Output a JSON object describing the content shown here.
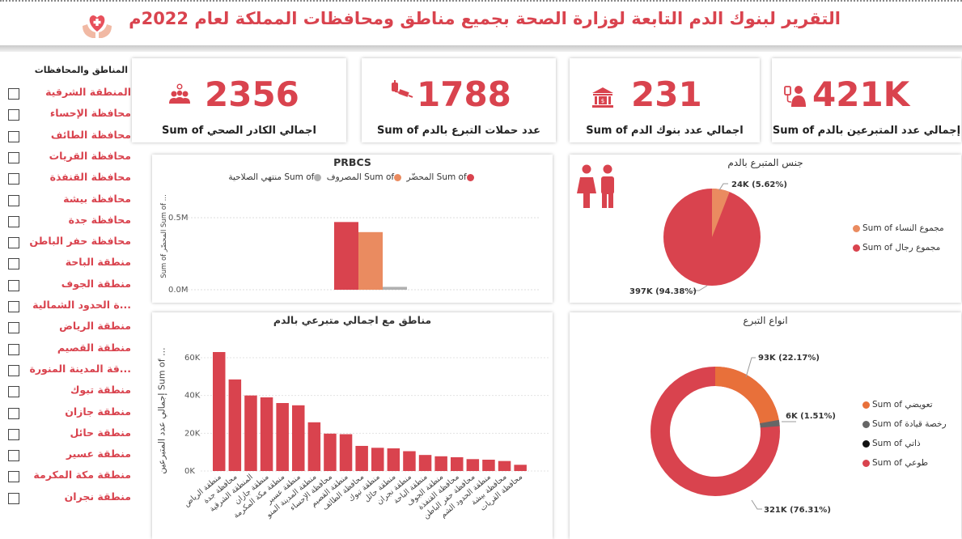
{
  "header": {
    "title": "التقرير  لبنوك الدم التابعة لوزارة الصحة بجميع مناطق ومحافظات المملكة لعام 2022م",
    "logo_icon": "heart-hands-icon"
  },
  "kpis": [
    {
      "value": "2356",
      "label": "اجمالي الكادر الصحي Sum of",
      "icon": "people-icon"
    },
    {
      "value": "1788",
      "label": "عدد حملات التبرع بالدم Sum of",
      "icon": "blood-syringe-icon"
    },
    {
      "value": "231",
      "label": "اجمالي عدد بنوك الدم Sum of",
      "icon": "bank-icon"
    },
    {
      "value": "421K",
      "label": "إجمالي عدد المتبرعين بالدم Sum of",
      "icon": "donor-icon"
    }
  ],
  "slicer": {
    "title": "المناطق والمحافظات",
    "items": [
      "المنطقة الشرقية",
      "محافظة الإحساء",
      "محافظة الطائف",
      "محافظة القريات",
      "محافظة القنفذة",
      "محافظة بيشة",
      "محافظة جدة",
      "محافظة حفر الباطن",
      "منطقة الباحة",
      "منطقة الجوف",
      "...ة الحدود الشمالية",
      "منطقة الرياض",
      "منطقة القصيم",
      "...قة المدينة المنورة",
      "منطقة تبوك",
      "منطقة جازان",
      "منطقة حائل",
      "منطقة عسير",
      "منطقة مكة المكرمة",
      "منطقة نجران"
    ]
  },
  "prbcs": {
    "title": "PRBCS",
    "legend": [
      "Sum of المحضّر",
      "Sum of المصروف",
      "Sum of منتهي الصلاحية"
    ],
    "colors": [
      "#d9434e",
      "#ea8b60",
      "#b0b0b0"
    ],
    "ylabel": "Sum of المحضّر Sum of ...",
    "ticks": [
      "0.5M",
      "0.0M"
    ]
  },
  "regions": {
    "title": "مناطق مع اجمالي متبرعي بالدم",
    "ylabel": "إجمالي عدد المتبرعين Sum of ...",
    "ticks": [
      "60K",
      "40K",
      "20K",
      "0K"
    ],
    "categories": [
      "منطقة الرياض",
      "محافظة جدة",
      "المنطقة الشرقية",
      "منطقة جازان",
      "منطقة مكة المكرمة",
      "منطقة عسير",
      "منطقة المدينة المنو",
      "محافظة الإحساء",
      "منطقة القصيم",
      "محافظة الطائف",
      "منطقة تبوك",
      "منطقة حائل",
      "منطقة نجران",
      "منطقة الباحة",
      "منطقة الجوف",
      "محافظة القنفذة",
      "محافظة حفر الباطن",
      "منطقة الحدود الشم",
      "محافظة بيشة",
      "محافظة القريات"
    ]
  },
  "gender": {
    "title": "جنس المتبرع بالدم",
    "legend": [
      "Sum of مجموع النساء",
      "Sum of مجموع رجال"
    ],
    "colors": [
      "#ea8b60",
      "#d9434e"
    ],
    "labels": [
      "24K (5.62%)",
      "397K (94.38%)"
    ]
  },
  "donation_types": {
    "title": "انواع التبرع",
    "legend": [
      "Sum of تعويضي",
      "Sum of رخصة قيادة",
      "Sum of ذاتي",
      "Sum of طوعي"
    ],
    "colors": [
      "#e8703a",
      "#666666",
      "#111111",
      "#d9434e"
    ],
    "labels": [
      "93K (22.17%)",
      "6K (1.51%)",
      "321K (76.31%)"
    ]
  },
  "chart_data": [
    {
      "type": "bar",
      "title": "PRBCS",
      "series": [
        {
          "name": "Sum of المحضّر",
          "values": [
            0.47
          ]
        },
        {
          "name": "Sum of المصروف",
          "values": [
            0.4
          ]
        },
        {
          "name": "Sum of منتهي الصلاحية",
          "values": [
            0.02
          ]
        }
      ],
      "ylim": [
        0,
        0.6
      ],
      "unit": "M"
    },
    {
      "type": "bar",
      "title": "مناطق مع اجمالي متبرعي بالدم",
      "categories": [
        "منطقة الرياض",
        "محافظة جدة",
        "المنطقة الشرقية",
        "منطقة جازان",
        "منطقة مكة المكرمة",
        "منطقة عسير",
        "منطقة المدينة المنو",
        "محافظة الإحساء",
        "منطقة القصيم",
        "محافظة الطائف",
        "منطقة تبوك",
        "منطقة حائل",
        "منطقة نجران",
        "منطقة الباحة",
        "منطقة الجوف",
        "محافظة القنفذة",
        "محافظة حفر الباطن",
        "منطقة الحدود الشم",
        "محافظة بيشة",
        "محافظة القريات"
      ],
      "values": [
        63000,
        48500,
        40000,
        39000,
        36000,
        34800,
        25800,
        19800,
        19500,
        13300,
        12300,
        12000,
        10500,
        8500,
        7800,
        7300,
        6300,
        6000,
        5300,
        3300
      ],
      "ylim": [
        0,
        70000
      ]
    },
    {
      "type": "pie",
      "title": "جنس المتبرع بالدم",
      "labels": [
        "مجموع النساء",
        "مجموع رجال"
      ],
      "values": [
        24000,
        397000
      ],
      "percent": [
        5.62,
        94.38
      ]
    },
    {
      "type": "pie",
      "title": "انواع التبرع",
      "labels": [
        "تعويضي",
        "رخصة قيادة",
        "ذاتي",
        "طوعي"
      ],
      "values": [
        93000,
        6000,
        0,
        321000
      ],
      "percent": [
        22.17,
        1.51,
        0,
        76.31
      ]
    }
  ]
}
